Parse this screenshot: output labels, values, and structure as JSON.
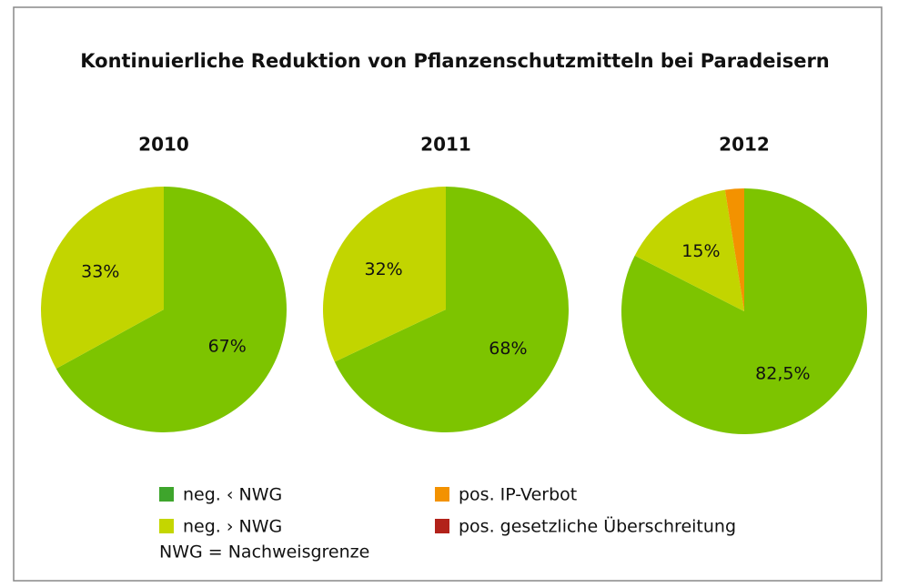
{
  "title": "Kontinuierliche Reduktion von Pflanzenschutzmitteln bei Paradeisern",
  "categories": [
    "neg. ‹ NWG",
    "neg. › NWG",
    "pos. IP-Verbot",
    "pos. gesetzliche Überschreitung"
  ],
  "legend_colors": [
    "#3ea52c",
    "#c4d600",
    "#f39200",
    "#b2221a"
  ],
  "note": "NWG = Nachweisgrenze",
  "chart_data": [
    {
      "type": "pie",
      "title": "2010",
      "values": [
        67,
        33
      ],
      "value_labels": [
        "67%",
        "33%"
      ],
      "colors": [
        "#7dc400",
        "#c2d500"
      ]
    },
    {
      "type": "pie",
      "title": "2011",
      "values": [
        68,
        32
      ],
      "value_labels": [
        "68%",
        "32%"
      ],
      "colors": [
        "#7dc400",
        "#c2d500"
      ]
    },
    {
      "type": "pie",
      "title": "2012",
      "values": [
        82.5,
        15,
        2.5
      ],
      "value_labels": [
        "82,5%",
        "15%",
        null
      ],
      "colors": [
        "#7dc400",
        "#c2d500",
        "#f39200"
      ]
    }
  ]
}
